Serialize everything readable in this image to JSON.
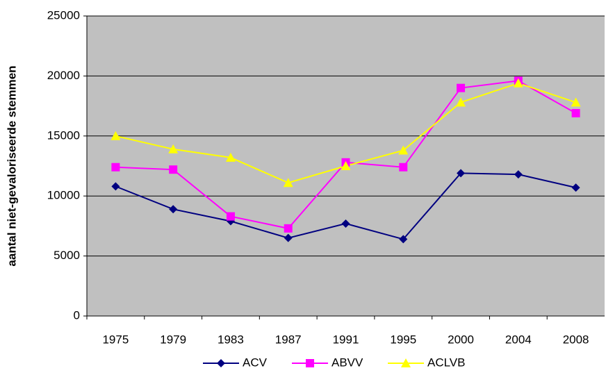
{
  "chart_data": {
    "type": "line",
    "y_label": "aantal niet-gevaloriseerde stemmen",
    "categories": [
      "1975",
      "1979",
      "1983",
      "1987",
      "1991",
      "1995",
      "2000",
      "2004",
      "2008"
    ],
    "series": [
      {
        "name": "ACV",
        "color": "#000080",
        "marker": "diamond",
        "values": [
          10800,
          8900,
          7900,
          6500,
          7700,
          6400,
          11900,
          11800,
          10700
        ]
      },
      {
        "name": "ABVV",
        "color": "#ff00ff",
        "marker": "square",
        "values": [
          12400,
          12200,
          8300,
          7300,
          12800,
          12400,
          19000,
          19600,
          16900
        ]
      },
      {
        "name": "ACLVB",
        "color": "#ffff00",
        "marker": "triangle",
        "values": [
          15000,
          13900,
          13200,
          11100,
          12500,
          13800,
          17800,
          19400,
          17800
        ]
      }
    ],
    "ylim": [
      0,
      25000
    ],
    "yticks": [
      0,
      5000,
      10000,
      15000,
      20000,
      25000
    ],
    "grid": true,
    "legend": "bottom"
  }
}
